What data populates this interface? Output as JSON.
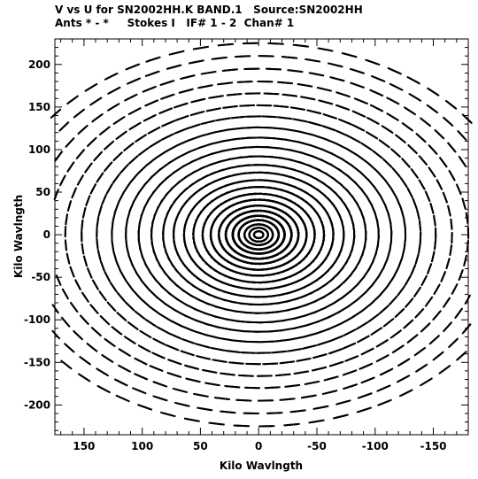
{
  "header": {
    "line1": "V vs U for SN2002HH.K BAND.1   Source:SN2002HH",
    "line2": "Ants * - *     Stokes I   IF# 1 - 2  Chan# 1"
  },
  "chart_data": {
    "type": "scatter",
    "title": "V vs U for SN2002HH.K BAND.1   Source:SN2002HH",
    "subtitle": "Ants * - *     Stokes I   IF# 1 - 2  Chan# 1",
    "xlabel": "Kilo Wavlngth",
    "ylabel": "Kilo Wavlngth",
    "xlim": [
      175,
      -180
    ],
    "ylim": [
      -235,
      230
    ],
    "x_reversed": true,
    "xticks": [
      150,
      100,
      50,
      0,
      -50,
      -100,
      -150
    ],
    "yticks": [
      200,
      150,
      100,
      50,
      0,
      -50,
      -100,
      -150,
      -200
    ],
    "grid": false,
    "marker_color": "#000000",
    "arms_deg": [
      -56,
      4,
      64
    ],
    "baseline_radii": [
      4,
      8,
      12,
      17,
      22,
      28,
      34,
      41,
      48,
      56,
      64,
      73,
      82,
      92,
      103,
      114,
      126,
      139,
      152,
      166,
      180,
      195,
      210,
      225
    ],
    "arc_half_width_deg": 60,
    "dash_step_deg": 5.5,
    "dash_length": 6
  }
}
